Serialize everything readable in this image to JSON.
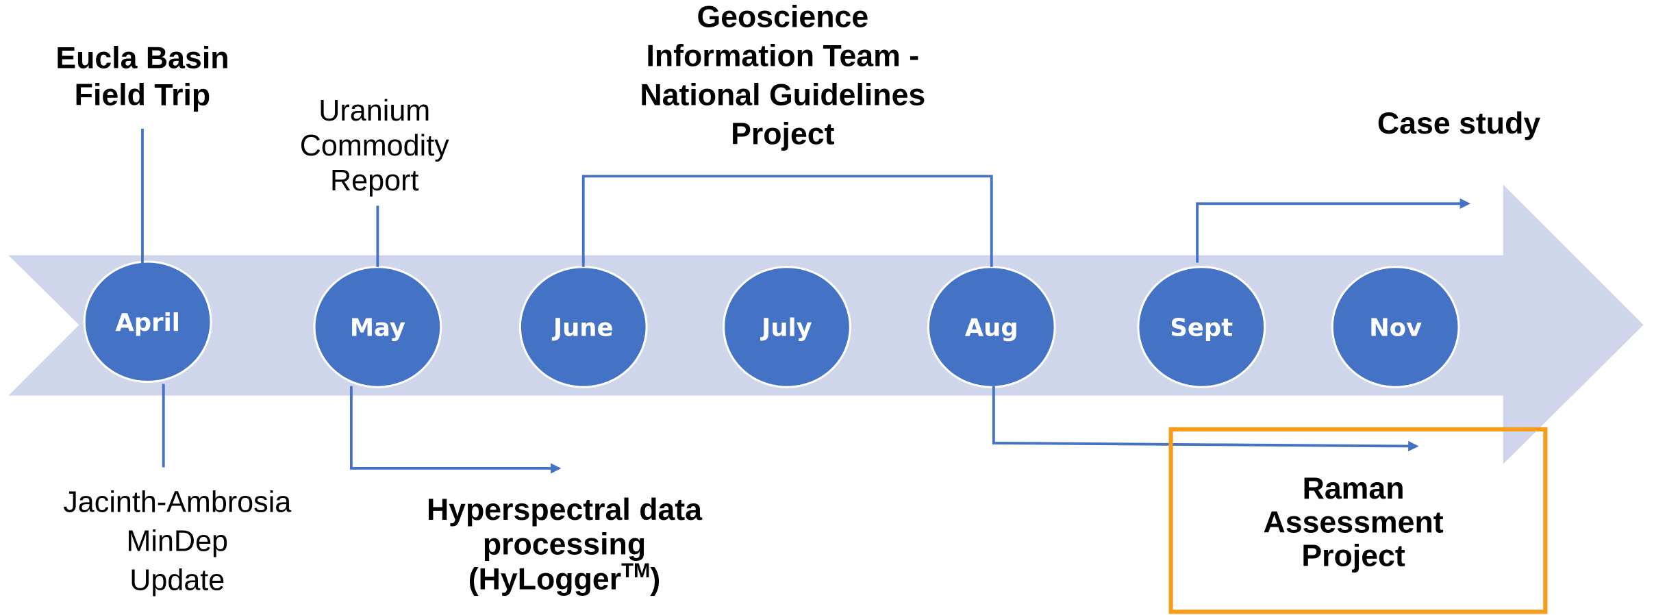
{
  "months": [
    "April",
    "May",
    "June",
    "July",
    "Aug",
    "Sept",
    "Nov"
  ],
  "events": {
    "eucla": {
      "lines": [
        "Eucla Basin",
        "Field Trip"
      ]
    },
    "uranium": {
      "lines": [
        "Uranium",
        "Commodity",
        "Report"
      ]
    },
    "geoscience": {
      "lines": [
        "Geoscience",
        "Information Team -",
        "National Guidelines",
        "Project"
      ]
    },
    "case_study": {
      "lines": [
        "Case study"
      ]
    },
    "jacinth": {
      "lines": [
        "Jacinth-Ambrosia",
        "MinDep",
        "Update"
      ]
    },
    "hyperspectral": {
      "lines": [
        "Hyperspectral data",
        "processing"
      ],
      "last_line": {
        "text": "(HyLogger",
        "superscript": "TM",
        "suffix": ")"
      }
    },
    "raman": {
      "lines": [
        "Raman",
        "Assessment",
        "Project"
      ]
    }
  }
}
